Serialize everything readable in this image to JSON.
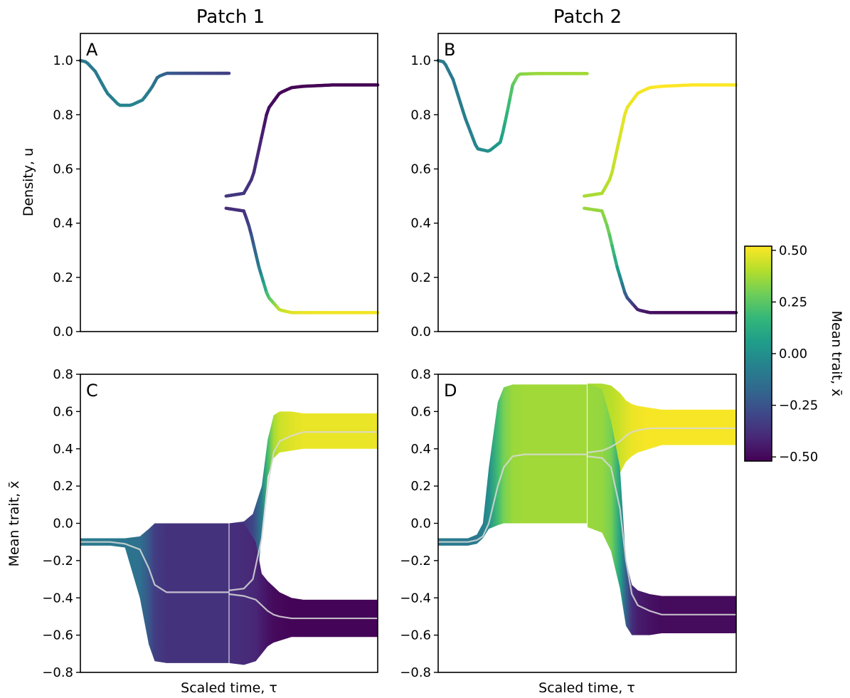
{
  "column_titles": [
    "Patch 1",
    "Patch 2"
  ],
  "colorbar": {
    "label": "Mean trait, x̄",
    "colormap": "viridis",
    "range": [
      -0.52,
      0.52
    ],
    "ticks": [
      0.5,
      0.25,
      0.0,
      -0.25,
      -0.5
    ],
    "tick_labels": [
      "0.50",
      "0.25",
      "0.00",
      "−0.25",
      "−0.50"
    ]
  },
  "chart_data": [
    {
      "type": "line",
      "panel": "A",
      "column": "Patch 1",
      "ylabel": "Density, u",
      "xlabel": "",
      "ylim": [
        0,
        1.1
      ],
      "yticks": [
        0,
        0.2,
        0.4,
        0.6,
        0.8,
        1.0
      ],
      "ytick_labels": [
        "0.0",
        "0.2",
        "0.4",
        "0.6",
        "0.8",
        "1.0"
      ],
      "color_by": "mean trait",
      "series": [
        {
          "x": [
            0,
            0.02,
            0.05,
            0.09,
            0.13,
            0.17,
            0.21,
            0.24,
            0.26,
            0.29,
            0.33,
            0.41,
            0.5
          ],
          "y": [
            1.0,
            0.995,
            0.96,
            0.88,
            0.835,
            0.835,
            0.855,
            0.9,
            0.94,
            0.953,
            0.953,
            0.953,
            0.953
          ],
          "trait": [
            -0.1,
            -0.1,
            -0.1,
            -0.08,
            -0.05,
            -0.05,
            -0.06,
            -0.1,
            -0.15,
            -0.2,
            -0.25,
            -0.3,
            -0.32
          ]
        },
        {
          "x": [
            0.49,
            0.55,
            0.58,
            0.61,
            0.63,
            0.67,
            0.71,
            0.75,
            0.85,
            1.0
          ],
          "y": [
            0.5,
            0.51,
            0.57,
            0.72,
            0.82,
            0.88,
            0.9,
            0.905,
            0.91,
            0.91
          ],
          "trait": [
            -0.35,
            -0.36,
            -0.38,
            -0.42,
            -0.48,
            -0.5,
            -0.51,
            -0.52,
            -0.52,
            -0.52
          ]
        },
        {
          "x": [
            0.49,
            0.55,
            0.57,
            0.6,
            0.63,
            0.67,
            0.71,
            0.75,
            0.85,
            1.0
          ],
          "y": [
            0.455,
            0.445,
            0.38,
            0.24,
            0.13,
            0.08,
            0.07,
            0.07,
            0.07,
            0.07
          ],
          "trait": [
            -0.39,
            -0.38,
            -0.3,
            -0.1,
            0.2,
            0.42,
            0.47,
            0.49,
            0.5,
            0.5
          ]
        }
      ]
    },
    {
      "type": "line",
      "panel": "B",
      "column": "Patch 2",
      "ylabel": "",
      "xlabel": "",
      "ylim": [
        0,
        1.1
      ],
      "yticks": [
        0,
        0.2,
        0.4,
        0.6,
        0.8,
        1.0
      ],
      "ytick_labels": [
        "0.0",
        "0.2",
        "0.4",
        "0.6",
        "0.8",
        "1.0"
      ],
      "color_by": "mean trait",
      "series": [
        {
          "x": [
            0,
            0.02,
            0.05,
            0.09,
            0.13,
            0.17,
            0.21,
            0.23,
            0.25,
            0.27,
            0.33,
            0.41,
            0.5
          ],
          "y": [
            1.0,
            0.995,
            0.93,
            0.79,
            0.675,
            0.665,
            0.7,
            0.8,
            0.91,
            0.95,
            0.952,
            0.952,
            0.952
          ],
          "trait": [
            -0.1,
            -0.1,
            -0.1,
            -0.08,
            -0.05,
            0.0,
            0.05,
            0.15,
            0.25,
            0.32,
            0.36,
            0.37,
            0.37
          ]
        },
        {
          "x": [
            0.49,
            0.55,
            0.58,
            0.61,
            0.63,
            0.67,
            0.71,
            0.75,
            0.85,
            1.0
          ],
          "y": [
            0.5,
            0.51,
            0.57,
            0.72,
            0.82,
            0.88,
            0.9,
            0.905,
            0.91,
            0.91
          ],
          "trait": [
            0.38,
            0.39,
            0.42,
            0.46,
            0.49,
            0.5,
            0.51,
            0.52,
            0.52,
            0.52
          ]
        },
        {
          "x": [
            0.49,
            0.55,
            0.57,
            0.6,
            0.63,
            0.67,
            0.71,
            0.75,
            0.85,
            1.0
          ],
          "y": [
            0.455,
            0.445,
            0.38,
            0.24,
            0.13,
            0.08,
            0.07,
            0.07,
            0.07,
            0.07
          ],
          "trait": [
            0.36,
            0.35,
            0.3,
            0.1,
            -0.2,
            -0.42,
            -0.47,
            -0.49,
            -0.5,
            -0.5
          ]
        }
      ]
    },
    {
      "type": "area",
      "panel": "C",
      "column": "Patch 1",
      "ylabel": "Mean trait, x̄",
      "xlabel": "Scaled time, τ",
      "ylim": [
        -0.8,
        0.8
      ],
      "yticks": [
        -0.8,
        -0.6,
        -0.4,
        -0.2,
        0.0,
        0.2,
        0.4,
        0.6,
        0.8
      ],
      "ytick_labels": [
        "−0.8",
        "−0.6",
        "−0.4",
        "−0.2",
        "0.0",
        "0.2",
        "0.4",
        "0.6",
        "0.8"
      ],
      "color_by": "mean trait",
      "series": [
        {
          "x": [
            0,
            0.1,
            0.15,
            0.2,
            0.23,
            0.25,
            0.29,
            0.33,
            0.5
          ],
          "mean": [
            -0.1,
            -0.1,
            -0.11,
            -0.14,
            -0.24,
            -0.33,
            -0.37,
            -0.37,
            -0.37
          ],
          "lower": [
            -0.12,
            -0.12,
            -0.13,
            -0.4,
            -0.65,
            -0.74,
            -0.75,
            -0.75,
            -0.75
          ],
          "upper": [
            -0.08,
            -0.08,
            -0.08,
            -0.07,
            -0.03,
            0.0,
            0.0,
            0.0,
            0.0
          ]
        },
        {
          "x": [
            0.5,
            0.55,
            0.58,
            0.61,
            0.63,
            0.65,
            0.67,
            0.71,
            0.75,
            0.85,
            1.0
          ],
          "mean": [
            -0.36,
            -0.35,
            -0.3,
            -0.08,
            0.2,
            0.38,
            0.44,
            0.47,
            0.49,
            0.49,
            0.49
          ],
          "lower": [
            -0.75,
            -0.74,
            -0.6,
            -0.05,
            0.25,
            0.35,
            0.38,
            0.39,
            0.4,
            0.4,
            0.4
          ],
          "upper": [
            0.0,
            0.01,
            0.05,
            0.2,
            0.45,
            0.58,
            0.6,
            0.6,
            0.59,
            0.59,
            0.59
          ]
        },
        {
          "x": [
            0.5,
            0.55,
            0.59,
            0.61,
            0.63,
            0.65,
            0.67,
            0.71,
            0.75,
            0.85,
            1.0
          ],
          "mean": [
            -0.38,
            -0.39,
            -0.41,
            -0.44,
            -0.47,
            -0.49,
            -0.5,
            -0.51,
            -0.51,
            -0.51,
            -0.51
          ],
          "lower": [
            -0.75,
            -0.76,
            -0.74,
            -0.7,
            -0.66,
            -0.64,
            -0.63,
            -0.61,
            -0.61,
            -0.61,
            -0.61
          ],
          "upper": [
            0.0,
            0.0,
            -0.1,
            -0.27,
            -0.31,
            -0.34,
            -0.37,
            -0.4,
            -0.41,
            -0.41,
            -0.41
          ]
        }
      ]
    },
    {
      "type": "area",
      "panel": "D",
      "column": "Patch 2",
      "ylabel": "",
      "xlabel": "Scaled time, τ",
      "ylim": [
        -0.8,
        0.8
      ],
      "yticks": [
        -0.8,
        -0.6,
        -0.4,
        -0.2,
        0.0,
        0.2,
        0.4,
        0.6,
        0.8
      ],
      "ytick_labels": [
        "−0.8",
        "−0.6",
        "−0.4",
        "−0.2",
        "0.0",
        "0.2",
        "0.4",
        "0.6",
        "0.8"
      ],
      "color_by": "mean trait",
      "series": [
        {
          "x": [
            0,
            0.1,
            0.13,
            0.15,
            0.17,
            0.2,
            0.22,
            0.25,
            0.29,
            0.33,
            0.5
          ],
          "mean": [
            -0.1,
            -0.1,
            -0.09,
            -0.07,
            0.0,
            0.2,
            0.3,
            0.36,
            0.37,
            0.37,
            0.37
          ],
          "lower": [
            -0.12,
            -0.12,
            -0.11,
            -0.08,
            -0.03,
            -0.01,
            0.0,
            0.0,
            0.0,
            0.0,
            0.0
          ],
          "upper": [
            -0.08,
            -0.08,
            -0.06,
            0.0,
            0.3,
            0.65,
            0.73,
            0.745,
            0.745,
            0.745,
            0.745
          ]
        },
        {
          "x": [
            0.5,
            0.55,
            0.58,
            0.61,
            0.63,
            0.65,
            0.67,
            0.71,
            0.75,
            0.85,
            1.0
          ],
          "mean": [
            0.38,
            0.39,
            0.41,
            0.44,
            0.47,
            0.49,
            0.5,
            0.51,
            0.51,
            0.51,
            0.51
          ],
          "lower": [
            -0.02,
            -0.01,
            0.1,
            0.27,
            0.33,
            0.36,
            0.38,
            0.4,
            0.42,
            0.42,
            0.42
          ],
          "upper": [
            0.75,
            0.75,
            0.74,
            0.7,
            0.66,
            0.64,
            0.63,
            0.62,
            0.61,
            0.61,
            0.61
          ]
        },
        {
          "x": [
            0.5,
            0.55,
            0.58,
            0.61,
            0.63,
            0.65,
            0.67,
            0.71,
            0.75,
            0.85,
            1.0
          ],
          "mean": [
            0.36,
            0.35,
            0.3,
            0.08,
            -0.2,
            -0.38,
            -0.44,
            -0.47,
            -0.49,
            -0.49,
            -0.49
          ],
          "lower": [
            -0.02,
            -0.05,
            -0.15,
            -0.35,
            -0.55,
            -0.6,
            -0.6,
            -0.6,
            -0.59,
            -0.59,
            -0.59
          ],
          "upper": [
            0.75,
            0.72,
            0.55,
            0.3,
            -0.2,
            -0.33,
            -0.36,
            -0.38,
            -0.39,
            -0.39,
            -0.39
          ]
        }
      ]
    }
  ]
}
